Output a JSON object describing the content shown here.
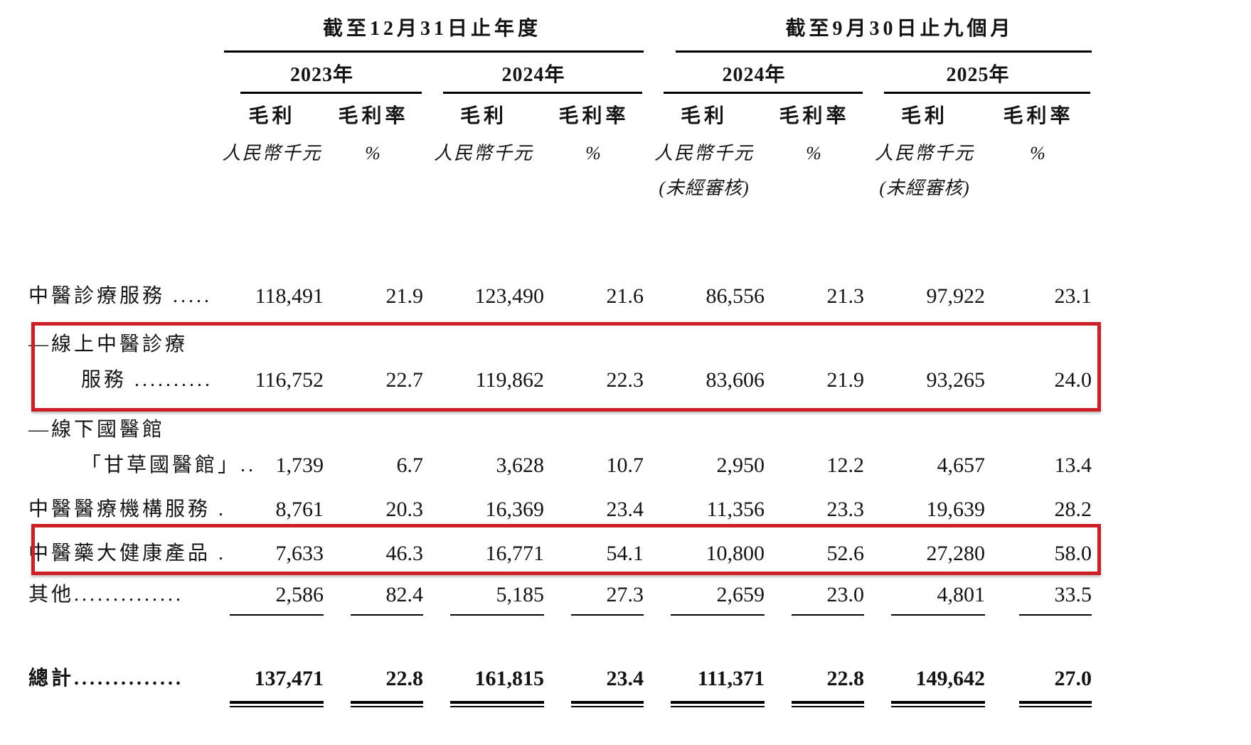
{
  "page": {
    "background": "#ffffff",
    "text_color": "#141414",
    "highlight_color": "#cc2026"
  },
  "table": {
    "period_groups": [
      {
        "title": "截至12月31日止年度",
        "years": [
          "2023年",
          "2024年"
        ]
      },
      {
        "title": "截至9月30日止九個月",
        "years": [
          "2024年",
          "2025年"
        ]
      }
    ],
    "column_headers": {
      "gross_profit": "毛利",
      "gross_profit_margin": "毛利率",
      "unit_rmb": "人民幣千元",
      "unit_pct": "%",
      "unaudited": "(未經審核)"
    },
    "rows": [
      {
        "label": "中醫診療服務 .....",
        "values": [
          "118,491",
          "21.9",
          "123,490",
          "21.6",
          "86,556",
          "21.3",
          "97,922",
          "23.1"
        ],
        "highlighted": false
      },
      {
        "label1": "—線上中醫診療",
        "label2": "服務 ..........",
        "values": [
          "116,752",
          "22.7",
          "119,862",
          "22.3",
          "83,606",
          "21.9",
          "93,265",
          "24.0"
        ],
        "highlighted": true
      },
      {
        "label1": "—線下國醫館",
        "label2": "「甘草國醫館」..",
        "values": [
          "1,739",
          "6.7",
          "3,628",
          "10.7",
          "2,950",
          "12.2",
          "4,657",
          "13.4"
        ],
        "highlighted": false
      },
      {
        "label": "中醫醫療機構服務 .",
        "values": [
          "8,761",
          "20.3",
          "16,369",
          "23.4",
          "11,356",
          "23.3",
          "19,639",
          "28.2"
        ],
        "highlighted": false
      },
      {
        "label": "中醫藥大健康產品 .",
        "values": [
          "7,633",
          "46.3",
          "16,771",
          "54.1",
          "10,800",
          "52.6",
          "27,280",
          "58.0"
        ],
        "highlighted": true
      },
      {
        "label": "其他..............",
        "values": [
          "2,586",
          "82.4",
          "5,185",
          "27.3",
          "2,659",
          "23.0",
          "4,801",
          "33.5"
        ],
        "highlighted": false
      }
    ],
    "total": {
      "label": "總計..............",
      "values": [
        "137,471",
        "22.8",
        "161,815",
        "23.4",
        "111,371",
        "22.8",
        "149,642",
        "27.0"
      ]
    }
  }
}
